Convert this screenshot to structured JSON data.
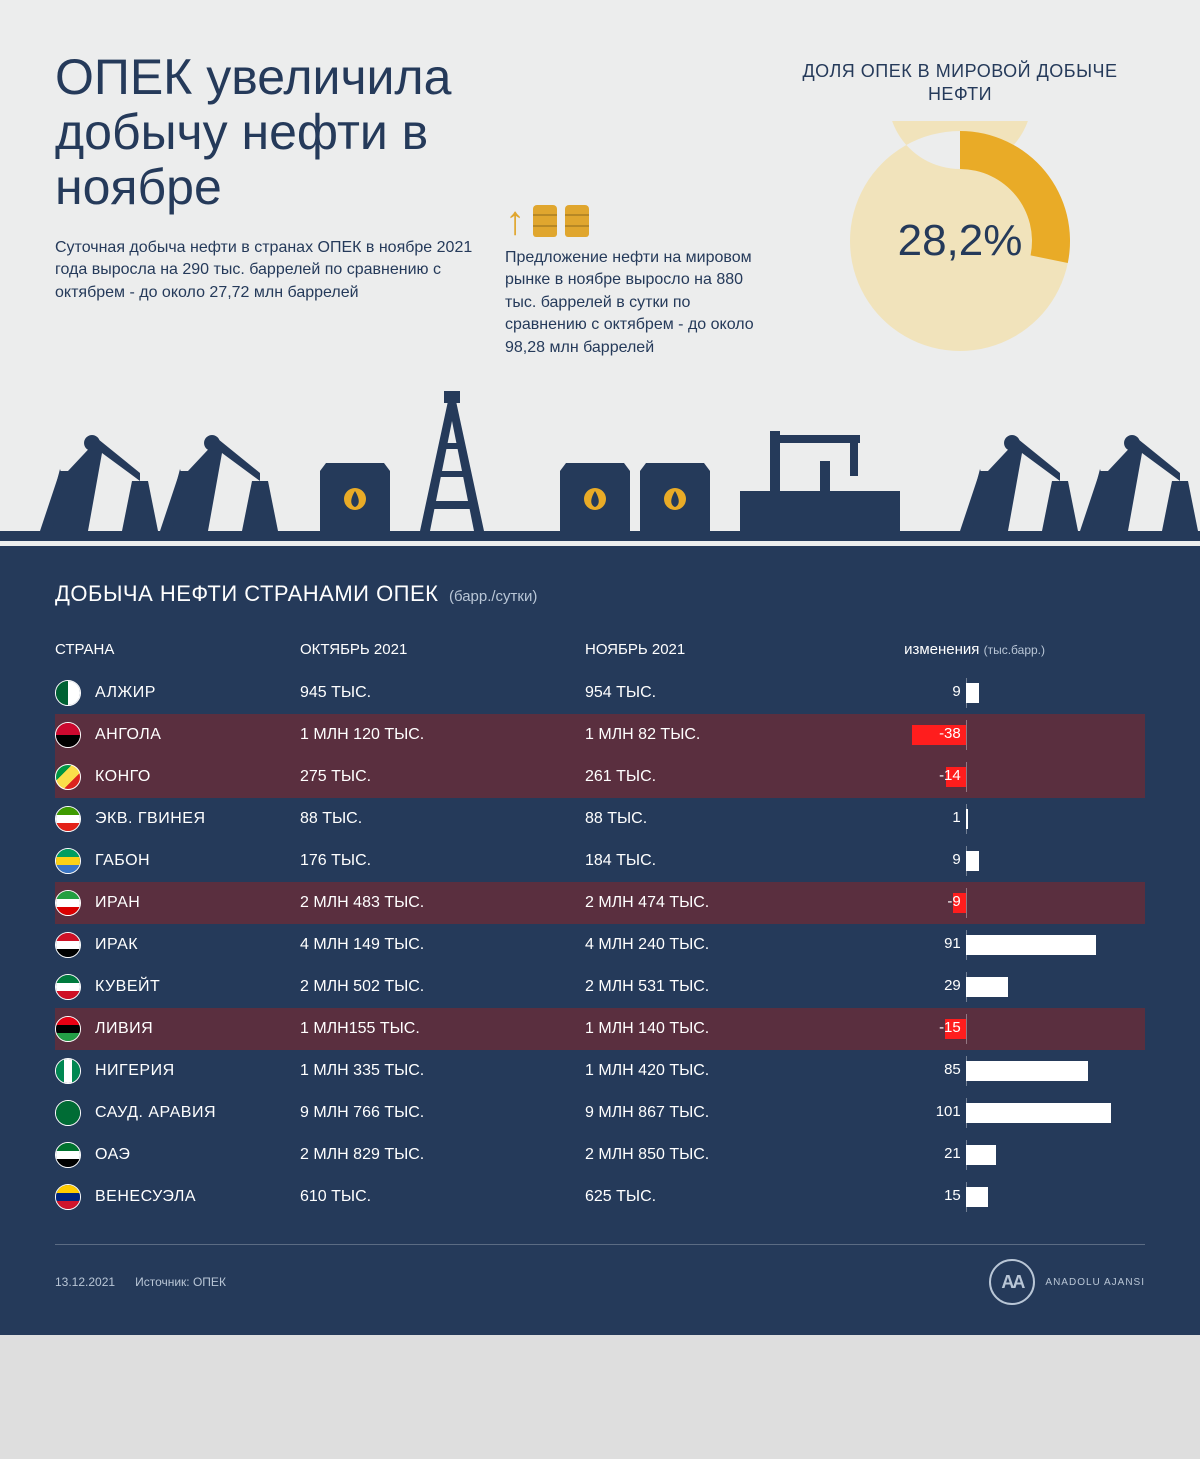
{
  "header": {
    "title": "ОПЕК увеличила добычу нефти в ноябре",
    "sub_left": "Cуточная добыча нефти в странах ОПЕК в ноябре 2021 года выросла на 290 тыс. баррелей по сравнению с октябрем - до около 27,72 млн баррелей",
    "sub_mid": "Предложение нефти на мировом рынке в ноябре выросло на 880 тыс. баррелей в сутки по сравнению с октябрем - до около 98,28 млн баррелей"
  },
  "donut": {
    "title": "ДОЛЯ ОПЕК В МИРОВОЙ ДОБЫЧЕ НЕФТИ",
    "percent": 28.2,
    "percent_label": "28,2%",
    "ring_colors": {
      "share": "#e9ab27",
      "rest": "#f1e3bb",
      "bg": "#eceded"
    },
    "radius_outer": 110,
    "radius_inner": 72
  },
  "silhouette_color": "#253a5a",
  "table": {
    "title": "ДОБЫЧА НЕФТИ СТРАНАМИ ОПЕК",
    "unit": "(барр./сутки)",
    "columns": {
      "country": "СТРАНА",
      "oct": "ОКТЯБРЬ 2021",
      "nov": "НОЯБРЬ 2021",
      "change": "изменения",
      "change_unit": "(тыс.барр.)"
    },
    "bar": {
      "axis_pct": 35,
      "scale": 100,
      "full_width_pct": 52,
      "pos_color": "#ffffff",
      "neg_color": "#ff1d1d",
      "neg_row_bg": "#5a2f3f"
    },
    "rows": [
      {
        "country": "АЛЖИР",
        "oct": "945 ТЫС.",
        "nov": "954 ТЫС.",
        "change": 9,
        "flag": [
          "#006233",
          "#ffffff"
        ],
        "flag_dir": "row"
      },
      {
        "country": "АНГОЛА",
        "oct": "1 МЛН 120 ТЫС.",
        "nov": "1 МЛН 82 ТЫС.",
        "change": -38,
        "flag": [
          "#cc092f",
          "#000000"
        ],
        "flag_dir": "col"
      },
      {
        "country": "КОНГО",
        "oct": "275 ТЫС.",
        "nov": "261 ТЫС.",
        "change": -14,
        "flag": [
          "#009543",
          "#fbde4a",
          "#dc241f"
        ],
        "flag_dir": "diag"
      },
      {
        "country": "ЭКВ. ГВИНЕЯ",
        "oct": "88 ТЫС.",
        "nov": "88 ТЫС.",
        "change": 1,
        "flag": [
          "#3e9a00",
          "#ffffff",
          "#e32118"
        ],
        "flag_dir": "col"
      },
      {
        "country": "ГАБОН",
        "oct": "176 ТЫС.",
        "nov": "184 ТЫС.",
        "change": 9,
        "flag": [
          "#009e60",
          "#fcd116",
          "#3a75c4"
        ],
        "flag_dir": "col"
      },
      {
        "country": "ИРАН",
        "oct": "2 МЛН 483 ТЫС.",
        "nov": "2 МЛН 474 ТЫС.",
        "change": -9,
        "flag": [
          "#239f40",
          "#ffffff",
          "#da0000"
        ],
        "flag_dir": "col"
      },
      {
        "country": "ИРАК",
        "oct": "4 МЛН 149 ТЫС.",
        "nov": "4 МЛН 240 ТЫС.",
        "change": 91,
        "flag": [
          "#ce1126",
          "#ffffff",
          "#000000"
        ],
        "flag_dir": "col"
      },
      {
        "country": "КУВЕЙТ",
        "oct": "2 МЛН 502 ТЫС.",
        "nov": "2 МЛН 531 ТЫС.",
        "change": 29,
        "flag": [
          "#007a3d",
          "#ffffff",
          "#ce1126"
        ],
        "flag_dir": "col"
      },
      {
        "country": "ЛИВИЯ",
        "oct": "1 МЛН155 ТЫС.",
        "nov": "1 МЛН 140 ТЫС.",
        "change": -15,
        "flag": [
          "#e70013",
          "#000000",
          "#239e46"
        ],
        "flag_dir": "col"
      },
      {
        "country": "НИГЕРИЯ",
        "oct": "1 МЛН 335 ТЫС.",
        "nov": "1 МЛН 420 ТЫС.",
        "change": 85,
        "flag": [
          "#008751",
          "#ffffff",
          "#008751"
        ],
        "flag_dir": "row"
      },
      {
        "country": "САУД. АРАВИЯ",
        "oct": "9 МЛН 766 ТЫС.",
        "nov": "9 МЛН 867 ТЫС.",
        "change": 101,
        "flag": [
          "#006c35"
        ],
        "flag_dir": "col"
      },
      {
        "country": "ОАЭ",
        "oct": "2 МЛН 829 ТЫС.",
        "nov": "2 МЛН 850 ТЫС.",
        "change": 21,
        "flag": [
          "#00732f",
          "#ffffff",
          "#000000"
        ],
        "flag_dir": "col"
      },
      {
        "country": "ВЕНЕСУЭЛА",
        "oct": "610 ТЫС.",
        "nov": "625 ТЫС.",
        "change": 15,
        "flag": [
          "#ffcc00",
          "#00247d",
          "#cf142b"
        ],
        "flag_dir": "col"
      }
    ]
  },
  "footer": {
    "date": "13.12.2021",
    "source": "Источник: ОПЕК",
    "agency_initials": "AA",
    "agency_name": "ANADOLU AJANSI"
  }
}
